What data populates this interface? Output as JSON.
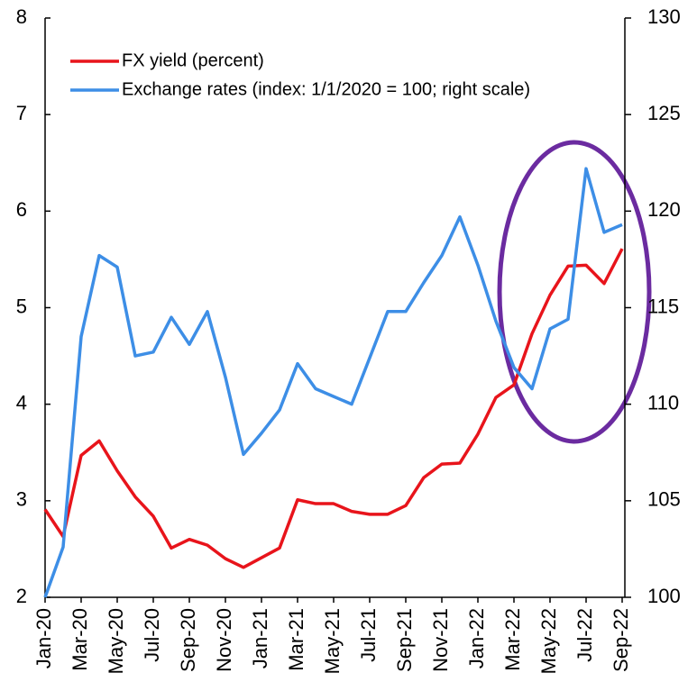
{
  "chart_data": {
    "type": "line",
    "categories": [
      "Jan-20",
      null,
      "Mar-20",
      null,
      "May-20",
      null,
      "Jul-20",
      null,
      "Sep-20",
      null,
      "Nov-20",
      null,
      "Jan-21",
      null,
      "Mar-21",
      null,
      "May-21",
      null,
      "Jul-21",
      null,
      "Sep-21",
      null,
      "Nov-21",
      null,
      "Jan-22",
      null,
      "Mar-22",
      null,
      "May-22",
      null,
      "Jul-22",
      null,
      "Sep-22"
    ],
    "series": [
      {
        "name": "FX yield (percent)",
        "color": "#e8141b",
        "axis": "y",
        "values": [
          2.91,
          2.63,
          3.47,
          3.62,
          3.31,
          3.04,
          2.84,
          2.51,
          2.6,
          2.54,
          2.4,
          2.31,
          2.41,
          2.51,
          3.01,
          2.97,
          2.97,
          2.89,
          2.86,
          2.86,
          2.95,
          3.24,
          3.38,
          3.39,
          3.69,
          4.07,
          4.2,
          4.73,
          5.13,
          5.43,
          5.44,
          5.25,
          5.61
        ]
      },
      {
        "name": "Exchange rates (index: 1/1/2020 = 100; right scale)",
        "color": "#3d8ee6",
        "axis": "y2",
        "values": [
          100,
          102.6,
          113.5,
          117.7,
          117.1,
          112.5,
          112.7,
          114.5,
          113.1,
          114.8,
          111.4,
          107.4,
          108.5,
          109.7,
          112.1,
          110.8,
          110.4,
          110,
          112.4,
          114.8,
          114.8,
          116.3,
          117.7,
          119.7,
          117.2,
          114.3,
          111.9,
          110.8,
          113.9,
          114.4,
          122.2,
          118.9,
          119.3
        ]
      }
    ],
    "ylim": [
      2,
      8
    ],
    "yticks": [
      2,
      3,
      4,
      5,
      6,
      7,
      8
    ],
    "y2lim": [
      100,
      130
    ],
    "y2ticks": [
      100,
      105,
      110,
      115,
      120,
      125,
      130
    ],
    "legend": "upper left",
    "grid": false
  }
}
